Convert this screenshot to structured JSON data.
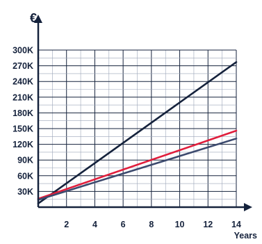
{
  "chart_data": {
    "type": "line",
    "ylabel": "€",
    "xlabel": "Years",
    "xlim": [
      0,
      14
    ],
    "ylim": [
      0,
      300000
    ],
    "x_ticks": [
      2,
      4,
      6,
      8,
      10,
      12,
      14
    ],
    "x_tick_labels": [
      "2",
      "4",
      "6",
      "8",
      "10",
      "12",
      "14"
    ],
    "y_ticks": [
      30000,
      60000,
      90000,
      120000,
      150000,
      180000,
      210000,
      240000,
      270000,
      300000
    ],
    "y_tick_labels": [
      "30K",
      "60K",
      "90K",
      "120K",
      "150K",
      "180K",
      "210K",
      "240K",
      "270K",
      "300K"
    ],
    "grid": true,
    "series": [
      {
        "color": "#15223c",
        "x": [
          0,
          14
        ],
        "y": [
          7000,
          277000
        ]
      },
      {
        "color": "#e01e3c",
        "x": [
          0,
          14
        ],
        "y": [
          16000,
          146000
        ]
      },
      {
        "color": "#3c4a6e",
        "x": [
          0,
          14
        ],
        "y": [
          14000,
          131000
        ]
      }
    ]
  }
}
